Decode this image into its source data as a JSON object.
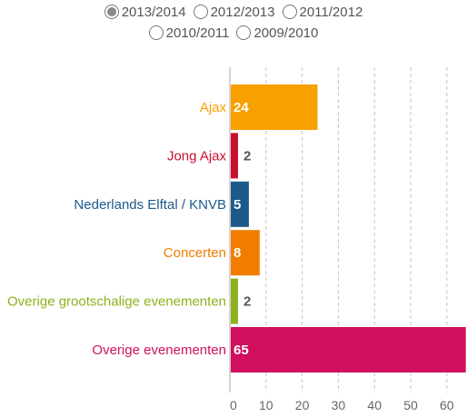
{
  "season_selector": {
    "options": [
      {
        "label": "2013/2014",
        "selected": true
      },
      {
        "label": "2012/2013",
        "selected": false
      },
      {
        "label": "2011/2012",
        "selected": false
      },
      {
        "label": "2010/2011",
        "selected": false
      },
      {
        "label": "2009/2010",
        "selected": false
      }
    ]
  },
  "chart_data": {
    "type": "bar",
    "orientation": "horizontal",
    "categories": [
      "Ajax",
      "Jong Ajax",
      "Nederlands Elftal / KNVB",
      "Concerten",
      "Overige grootschalige evenementen",
      "Overige evenementen"
    ],
    "values": [
      24,
      2,
      5,
      8,
      2,
      65
    ],
    "value_labels": [
      "24",
      "2",
      "5",
      "8",
      "2",
      "65"
    ],
    "colors": [
      "#f7a100",
      "#c8102e",
      "#1d5a8a",
      "#f07d00",
      "#8cb21e",
      "#d0105f"
    ],
    "xlim": [
      0,
      65
    ],
    "xticks": [
      0,
      10,
      20,
      30,
      40,
      50,
      60
    ],
    "xtick_labels": [
      "0",
      "10",
      "20",
      "30",
      "40",
      "50",
      "60"
    ],
    "grid": true,
    "legend": "none",
    "title": "",
    "xlabel": "",
    "ylabel": ""
  }
}
